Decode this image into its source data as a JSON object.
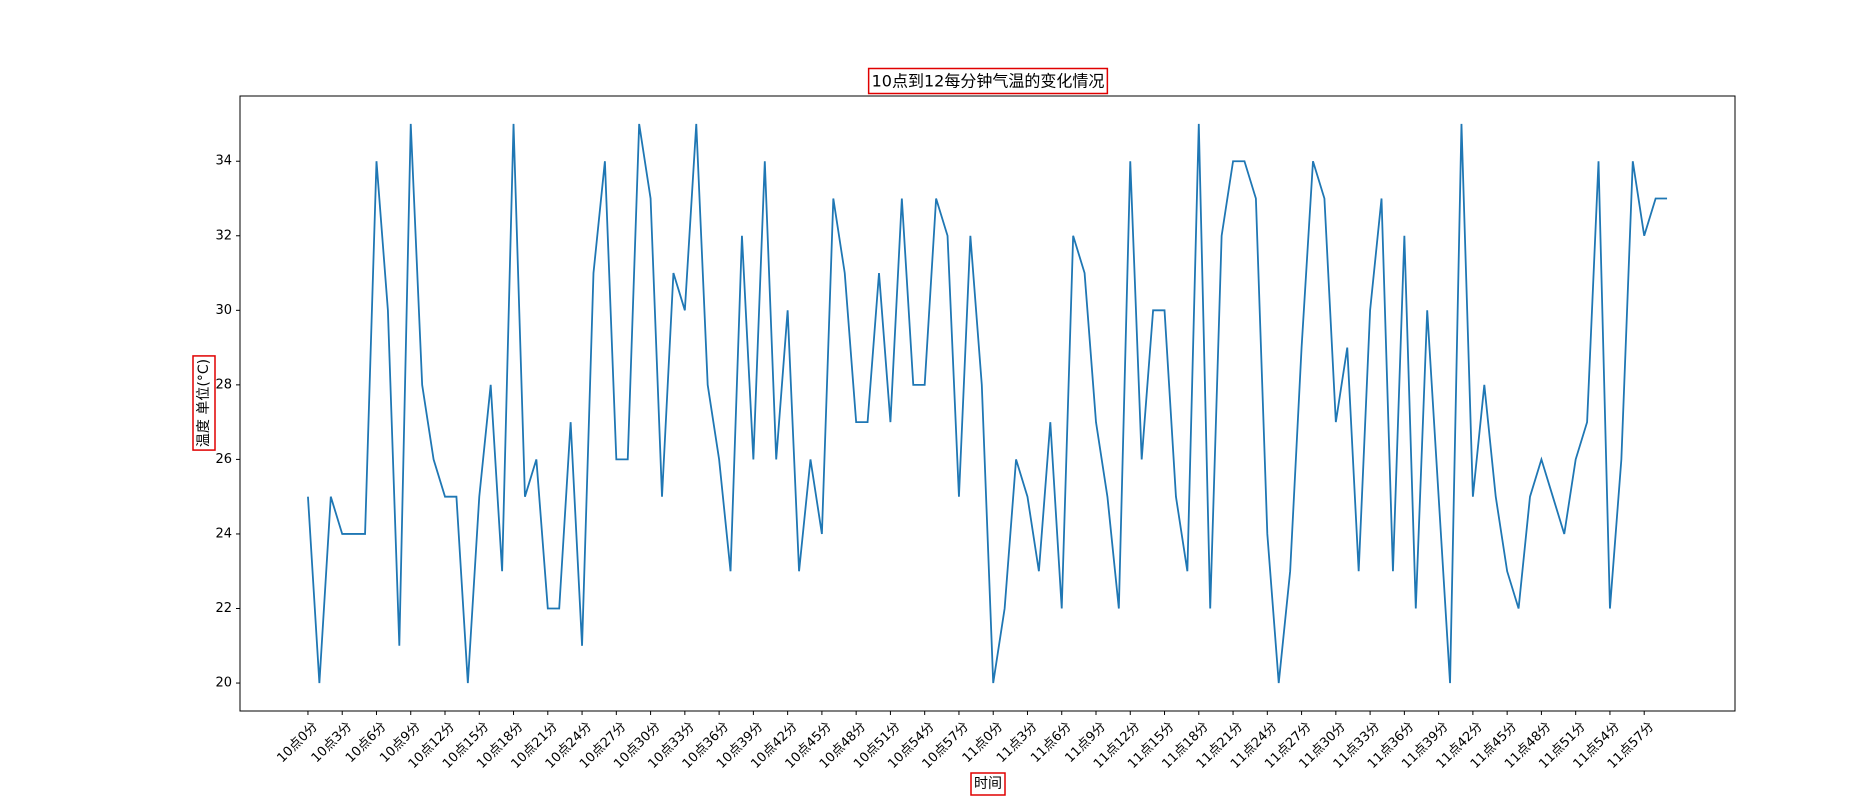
{
  "chart_data": {
    "type": "line",
    "title": "10点到12每分钟气温的变化情况",
    "xlabel": "时间",
    "ylabel": "温度 单位(°C)",
    "categories": [
      "10点0分",
      null,
      null,
      "10点3分",
      null,
      null,
      "10点6分",
      null,
      null,
      "10点9分",
      null,
      null,
      "10点12分",
      null,
      null,
      "10点15分",
      null,
      null,
      "10点18分",
      null,
      null,
      "10点21分",
      null,
      null,
      "10点24分",
      null,
      null,
      "10点27分",
      null,
      null,
      "10点30分",
      null,
      null,
      "10点33分",
      null,
      null,
      "10点36分",
      null,
      null,
      "10点39分",
      null,
      null,
      "10点42分",
      null,
      null,
      "10点45分",
      null,
      null,
      "10点48分",
      null,
      null,
      "10点51分",
      null,
      null,
      "10点54分",
      null,
      null,
      "10点57分",
      null,
      null,
      "11点0分",
      null,
      null,
      "11点3分",
      null,
      null,
      "11点6分",
      null,
      null,
      "11点9分",
      null,
      null,
      "11点12分",
      null,
      null,
      "11点15分",
      null,
      null,
      "11点18分",
      null,
      null,
      "11点21分",
      null,
      null,
      "11点24分",
      null,
      null,
      "11点27分",
      null,
      null,
      "11点30分",
      null,
      null,
      "11点33分",
      null,
      null,
      "11点36分",
      null,
      null,
      "11点39分",
      null,
      null,
      "11点42分",
      null,
      null,
      "11点45分",
      null,
      null,
      "11点48分",
      null,
      null,
      "11点51分",
      null,
      null,
      "11点54分",
      null,
      null,
      "11点57分",
      null,
      null
    ],
    "values": [
      25,
      20,
      25,
      24,
      24,
      24,
      34,
      30,
      21,
      35,
      28,
      26,
      25,
      25,
      20,
      25,
      28,
      23,
      35,
      25,
      26,
      22,
      22,
      27,
      21,
      31,
      34,
      26,
      26,
      35,
      33,
      25,
      31,
      30,
      35,
      28,
      26,
      23,
      32,
      26,
      34,
      26,
      30,
      23,
      26,
      24,
      33,
      31,
      27,
      27,
      31,
      27,
      33,
      28,
      28,
      33,
      32,
      25,
      32,
      28,
      20,
      22,
      26,
      25,
      23,
      27,
      22,
      32,
      31,
      27,
      25,
      22,
      34,
      26,
      30,
      30,
      25,
      23,
      35,
      22,
      32,
      34,
      34,
      33,
      24,
      20,
      23,
      29,
      34,
      33,
      27,
      29,
      23,
      30,
      33,
      23,
      32,
      22,
      30,
      25,
      20,
      35,
      25,
      28,
      25,
      23,
      22,
      25,
      26,
      25,
      24,
      26,
      27,
      34,
      22,
      26,
      34,
      32,
      33,
      33
    ],
    "color": "#1f77b4",
    "ylim": [
      19.25,
      35.75
    ],
    "yticks": [
      20,
      22,
      24,
      26,
      28,
      30,
      32,
      34
    ]
  }
}
